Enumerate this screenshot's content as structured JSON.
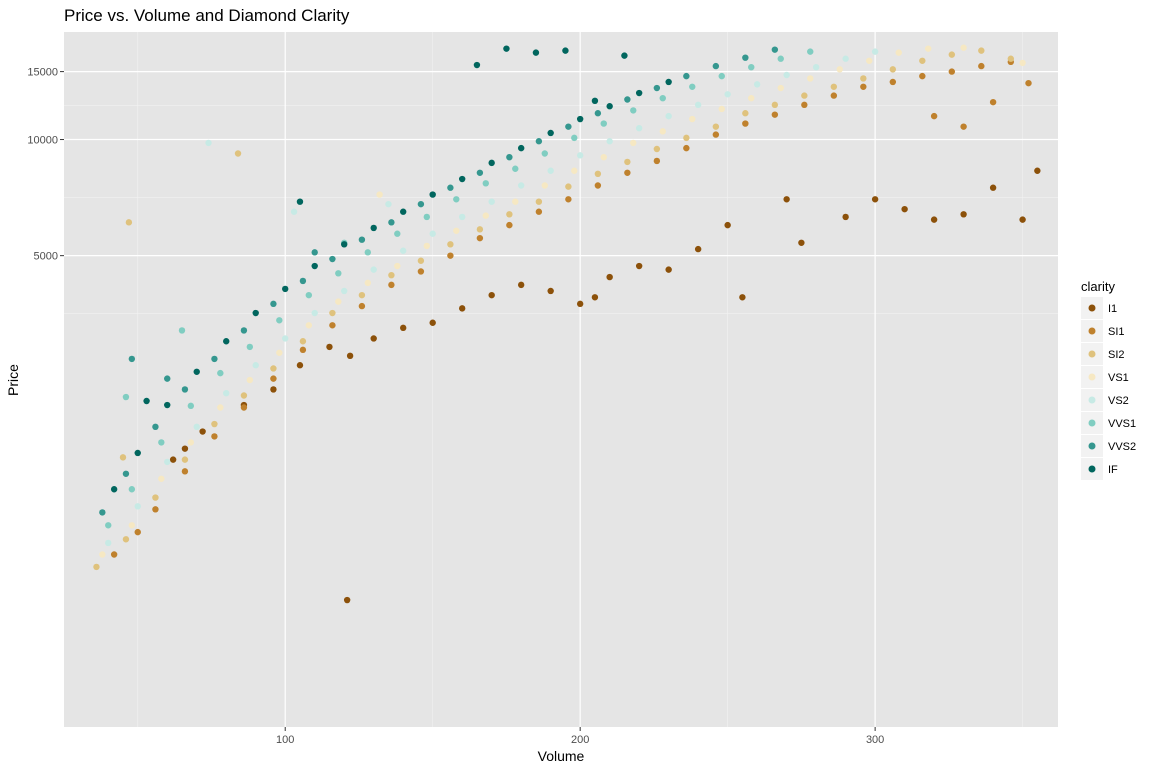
{
  "chart_data": {
    "type": "scatter",
    "title": "Price vs. Volume and Diamond Clarity",
    "xlabel": "Volume",
    "ylabel": "Price",
    "x_scale": "linear",
    "y_scale": "log10",
    "xlim": [
      25,
      362
    ],
    "ylim": [
      300,
      19000
    ],
    "x_ticks": [
      100,
      200,
      300
    ],
    "y_ticks": [
      5000,
      10000,
      15000
    ],
    "grid": true,
    "legend": {
      "title": "clarity",
      "position": "right",
      "entries": [
        "I1",
        "SI1",
        "SI2",
        "VS1",
        "VS2",
        "VVS1",
        "VVS2",
        "IF"
      ]
    },
    "colors": {
      "I1": "#8c510a",
      "SI1": "#bf812d",
      "SI2": "#dfc27d",
      "VS1": "#f6e8c3",
      "VS2": "#c7eae5",
      "VVS1": "#80cdc1",
      "VVS2": "#35978f",
      "IF": "#01665e"
    },
    "series": [
      {
        "name": "I1",
        "points": [
          [
            62,
            1480
          ],
          [
            66,
            1580
          ],
          [
            72,
            1750
          ],
          [
            86,
            2050
          ],
          [
            96,
            2250
          ],
          [
            105,
            2600
          ],
          [
            115,
            2900
          ],
          [
            122,
            2750
          ],
          [
            130,
            3050
          ],
          [
            140,
            3250
          ],
          [
            150,
            3350
          ],
          [
            160,
            3650
          ],
          [
            170,
            3950
          ],
          [
            180,
            4200
          ],
          [
            190,
            4050
          ],
          [
            200,
            3750
          ],
          [
            205,
            3900
          ],
          [
            210,
            4400
          ],
          [
            220,
            4700
          ],
          [
            230,
            4600
          ],
          [
            240,
            5200
          ],
          [
            250,
            6000
          ],
          [
            270,
            7000
          ],
          [
            290,
            6300
          ],
          [
            300,
            7000
          ],
          [
            310,
            6600
          ],
          [
            320,
            6200
          ],
          [
            330,
            6400
          ],
          [
            340,
            7500
          ],
          [
            350,
            6200
          ],
          [
            355,
            8300
          ],
          [
            121,
            640
          ],
          [
            255,
            3900
          ],
          [
            275,
            5400
          ]
        ]
      },
      {
        "name": "SI1",
        "points": [
          [
            42,
            840
          ],
          [
            50,
            960
          ],
          [
            56,
            1100
          ],
          [
            66,
            1380
          ],
          [
            76,
            1700
          ],
          [
            86,
            2020
          ],
          [
            96,
            2400
          ],
          [
            106,
            2850
          ],
          [
            116,
            3300
          ],
          [
            126,
            3700
          ],
          [
            136,
            4200
          ],
          [
            146,
            4550
          ],
          [
            156,
            5000
          ],
          [
            166,
            5550
          ],
          [
            176,
            6000
          ],
          [
            186,
            6500
          ],
          [
            196,
            7000
          ],
          [
            206,
            7600
          ],
          [
            216,
            8200
          ],
          [
            226,
            8800
          ],
          [
            236,
            9500
          ],
          [
            246,
            10300
          ],
          [
            256,
            11000
          ],
          [
            266,
            11600
          ],
          [
            276,
            12300
          ],
          [
            286,
            13000
          ],
          [
            296,
            13700
          ],
          [
            306,
            14100
          ],
          [
            316,
            14600
          ],
          [
            326,
            15000
          ],
          [
            336,
            15500
          ],
          [
            346,
            15900
          ],
          [
            352,
            14000
          ],
          [
            340,
            12500
          ],
          [
            320,
            11500
          ],
          [
            330,
            10800
          ]
        ]
      },
      {
        "name": "SI2",
        "points": [
          [
            36,
            780
          ],
          [
            46,
            920
          ],
          [
            56,
            1180
          ],
          [
            66,
            1480
          ],
          [
            76,
            1830
          ],
          [
            86,
            2170
          ],
          [
            96,
            2550
          ],
          [
            106,
            3000
          ],
          [
            116,
            3550
          ],
          [
            126,
            3950
          ],
          [
            136,
            4450
          ],
          [
            146,
            4850
          ],
          [
            156,
            5350
          ],
          [
            166,
            5850
          ],
          [
            176,
            6400
          ],
          [
            186,
            6900
          ],
          [
            196,
            7550
          ],
          [
            206,
            8150
          ],
          [
            216,
            8750
          ],
          [
            226,
            9450
          ],
          [
            236,
            10100
          ],
          [
            246,
            10800
          ],
          [
            256,
            11700
          ],
          [
            266,
            12300
          ],
          [
            276,
            13000
          ],
          [
            286,
            13700
          ],
          [
            296,
            14400
          ],
          [
            306,
            15200
          ],
          [
            316,
            16000
          ],
          [
            326,
            16600
          ],
          [
            336,
            17000
          ],
          [
            346,
            16200
          ],
          [
            84,
            9200
          ],
          [
            47,
            6100
          ],
          [
            45,
            1500
          ]
        ]
      },
      {
        "name": "VS1",
        "points": [
          [
            38,
            840
          ],
          [
            48,
            1000
          ],
          [
            58,
            1320
          ],
          [
            68,
            1640
          ],
          [
            78,
            2020
          ],
          [
            88,
            2380
          ],
          [
            98,
            2800
          ],
          [
            108,
            3300
          ],
          [
            118,
            3800
          ],
          [
            128,
            4250
          ],
          [
            138,
            4700
          ],
          [
            148,
            5300
          ],
          [
            158,
            5800
          ],
          [
            168,
            6350
          ],
          [
            178,
            6900
          ],
          [
            188,
            7600
          ],
          [
            198,
            8300
          ],
          [
            208,
            9000
          ],
          [
            218,
            9800
          ],
          [
            228,
            10500
          ],
          [
            238,
            11300
          ],
          [
            248,
            12000
          ],
          [
            258,
            12800
          ],
          [
            268,
            13600
          ],
          [
            278,
            14400
          ],
          [
            288,
            15200
          ],
          [
            298,
            16000
          ],
          [
            308,
            16800
          ],
          [
            318,
            17200
          ],
          [
            330,
            17300
          ],
          [
            350,
            15800
          ],
          [
            132,
            7200
          ]
        ]
      },
      {
        "name": "VS2",
        "points": [
          [
            40,
            900
          ],
          [
            50,
            1120
          ],
          [
            60,
            1460
          ],
          [
            70,
            1800
          ],
          [
            80,
            2200
          ],
          [
            90,
            2600
          ],
          [
            100,
            3050
          ],
          [
            110,
            3550
          ],
          [
            120,
            4050
          ],
          [
            130,
            4600
          ],
          [
            140,
            5150
          ],
          [
            150,
            5700
          ],
          [
            160,
            6300
          ],
          [
            170,
            6900
          ],
          [
            180,
            7600
          ],
          [
            190,
            8300
          ],
          [
            200,
            9100
          ],
          [
            210,
            9900
          ],
          [
            220,
            10700
          ],
          [
            230,
            11500
          ],
          [
            240,
            12300
          ],
          [
            250,
            13100
          ],
          [
            260,
            13900
          ],
          [
            270,
            14700
          ],
          [
            280,
            15400
          ],
          [
            290,
            16200
          ],
          [
            300,
            16900
          ],
          [
            74,
            9800
          ],
          [
            103,
            6500
          ],
          [
            135,
            6800
          ]
        ]
      },
      {
        "name": "VVS1",
        "points": [
          [
            40,
            1000
          ],
          [
            48,
            1240
          ],
          [
            58,
            1640
          ],
          [
            68,
            2040
          ],
          [
            78,
            2480
          ],
          [
            88,
            2900
          ],
          [
            98,
            3400
          ],
          [
            108,
            3950
          ],
          [
            118,
            4500
          ],
          [
            128,
            5100
          ],
          [
            138,
            5700
          ],
          [
            148,
            6300
          ],
          [
            158,
            7000
          ],
          [
            168,
            7700
          ],
          [
            178,
            8400
          ],
          [
            188,
            9200
          ],
          [
            198,
            10100
          ],
          [
            208,
            11000
          ],
          [
            218,
            11900
          ],
          [
            228,
            12800
          ],
          [
            238,
            13700
          ],
          [
            248,
            14600
          ],
          [
            258,
            15400
          ],
          [
            268,
            16200
          ],
          [
            278,
            16900
          ],
          [
            46,
            2150
          ],
          [
            65,
            3200
          ],
          [
            120,
            5400
          ]
        ]
      },
      {
        "name": "VVS2",
        "points": [
          [
            38,
            1080
          ],
          [
            46,
            1360
          ],
          [
            56,
            1800
          ],
          [
            66,
            2250
          ],
          [
            76,
            2700
          ],
          [
            86,
            3200
          ],
          [
            96,
            3750
          ],
          [
            106,
            4300
          ],
          [
            116,
            4900
          ],
          [
            126,
            5500
          ],
          [
            136,
            6100
          ],
          [
            146,
            6800
          ],
          [
            156,
            7500
          ],
          [
            166,
            8200
          ],
          [
            176,
            9000
          ],
          [
            186,
            9900
          ],
          [
            196,
            10800
          ],
          [
            206,
            11700
          ],
          [
            216,
            12700
          ],
          [
            226,
            13600
          ],
          [
            236,
            14600
          ],
          [
            246,
            15500
          ],
          [
            256,
            16300
          ],
          [
            266,
            17100
          ],
          [
            48,
            2700
          ],
          [
            60,
            2400
          ],
          [
            110,
            5100
          ]
        ]
      },
      {
        "name": "IF",
        "points": [
          [
            42,
            1240
          ],
          [
            50,
            1540
          ],
          [
            60,
            2050
          ],
          [
            70,
            2500
          ],
          [
            80,
            3000
          ],
          [
            90,
            3550
          ],
          [
            100,
            4100
          ],
          [
            110,
            4700
          ],
          [
            120,
            5350
          ],
          [
            130,
            5900
          ],
          [
            140,
            6500
          ],
          [
            150,
            7200
          ],
          [
            160,
            7900
          ],
          [
            170,
            8700
          ],
          [
            180,
            9500
          ],
          [
            190,
            10400
          ],
          [
            200,
            11300
          ],
          [
            210,
            12200
          ],
          [
            220,
            13200
          ],
          [
            230,
            14100
          ],
          [
            165,
            15600
          ],
          [
            175,
            17200
          ],
          [
            185,
            16800
          ],
          [
            195,
            17000
          ],
          [
            105,
            6900
          ],
          [
            53,
            2100
          ],
          [
            205,
            12600
          ],
          [
            215,
            16500
          ]
        ]
      }
    ]
  }
}
